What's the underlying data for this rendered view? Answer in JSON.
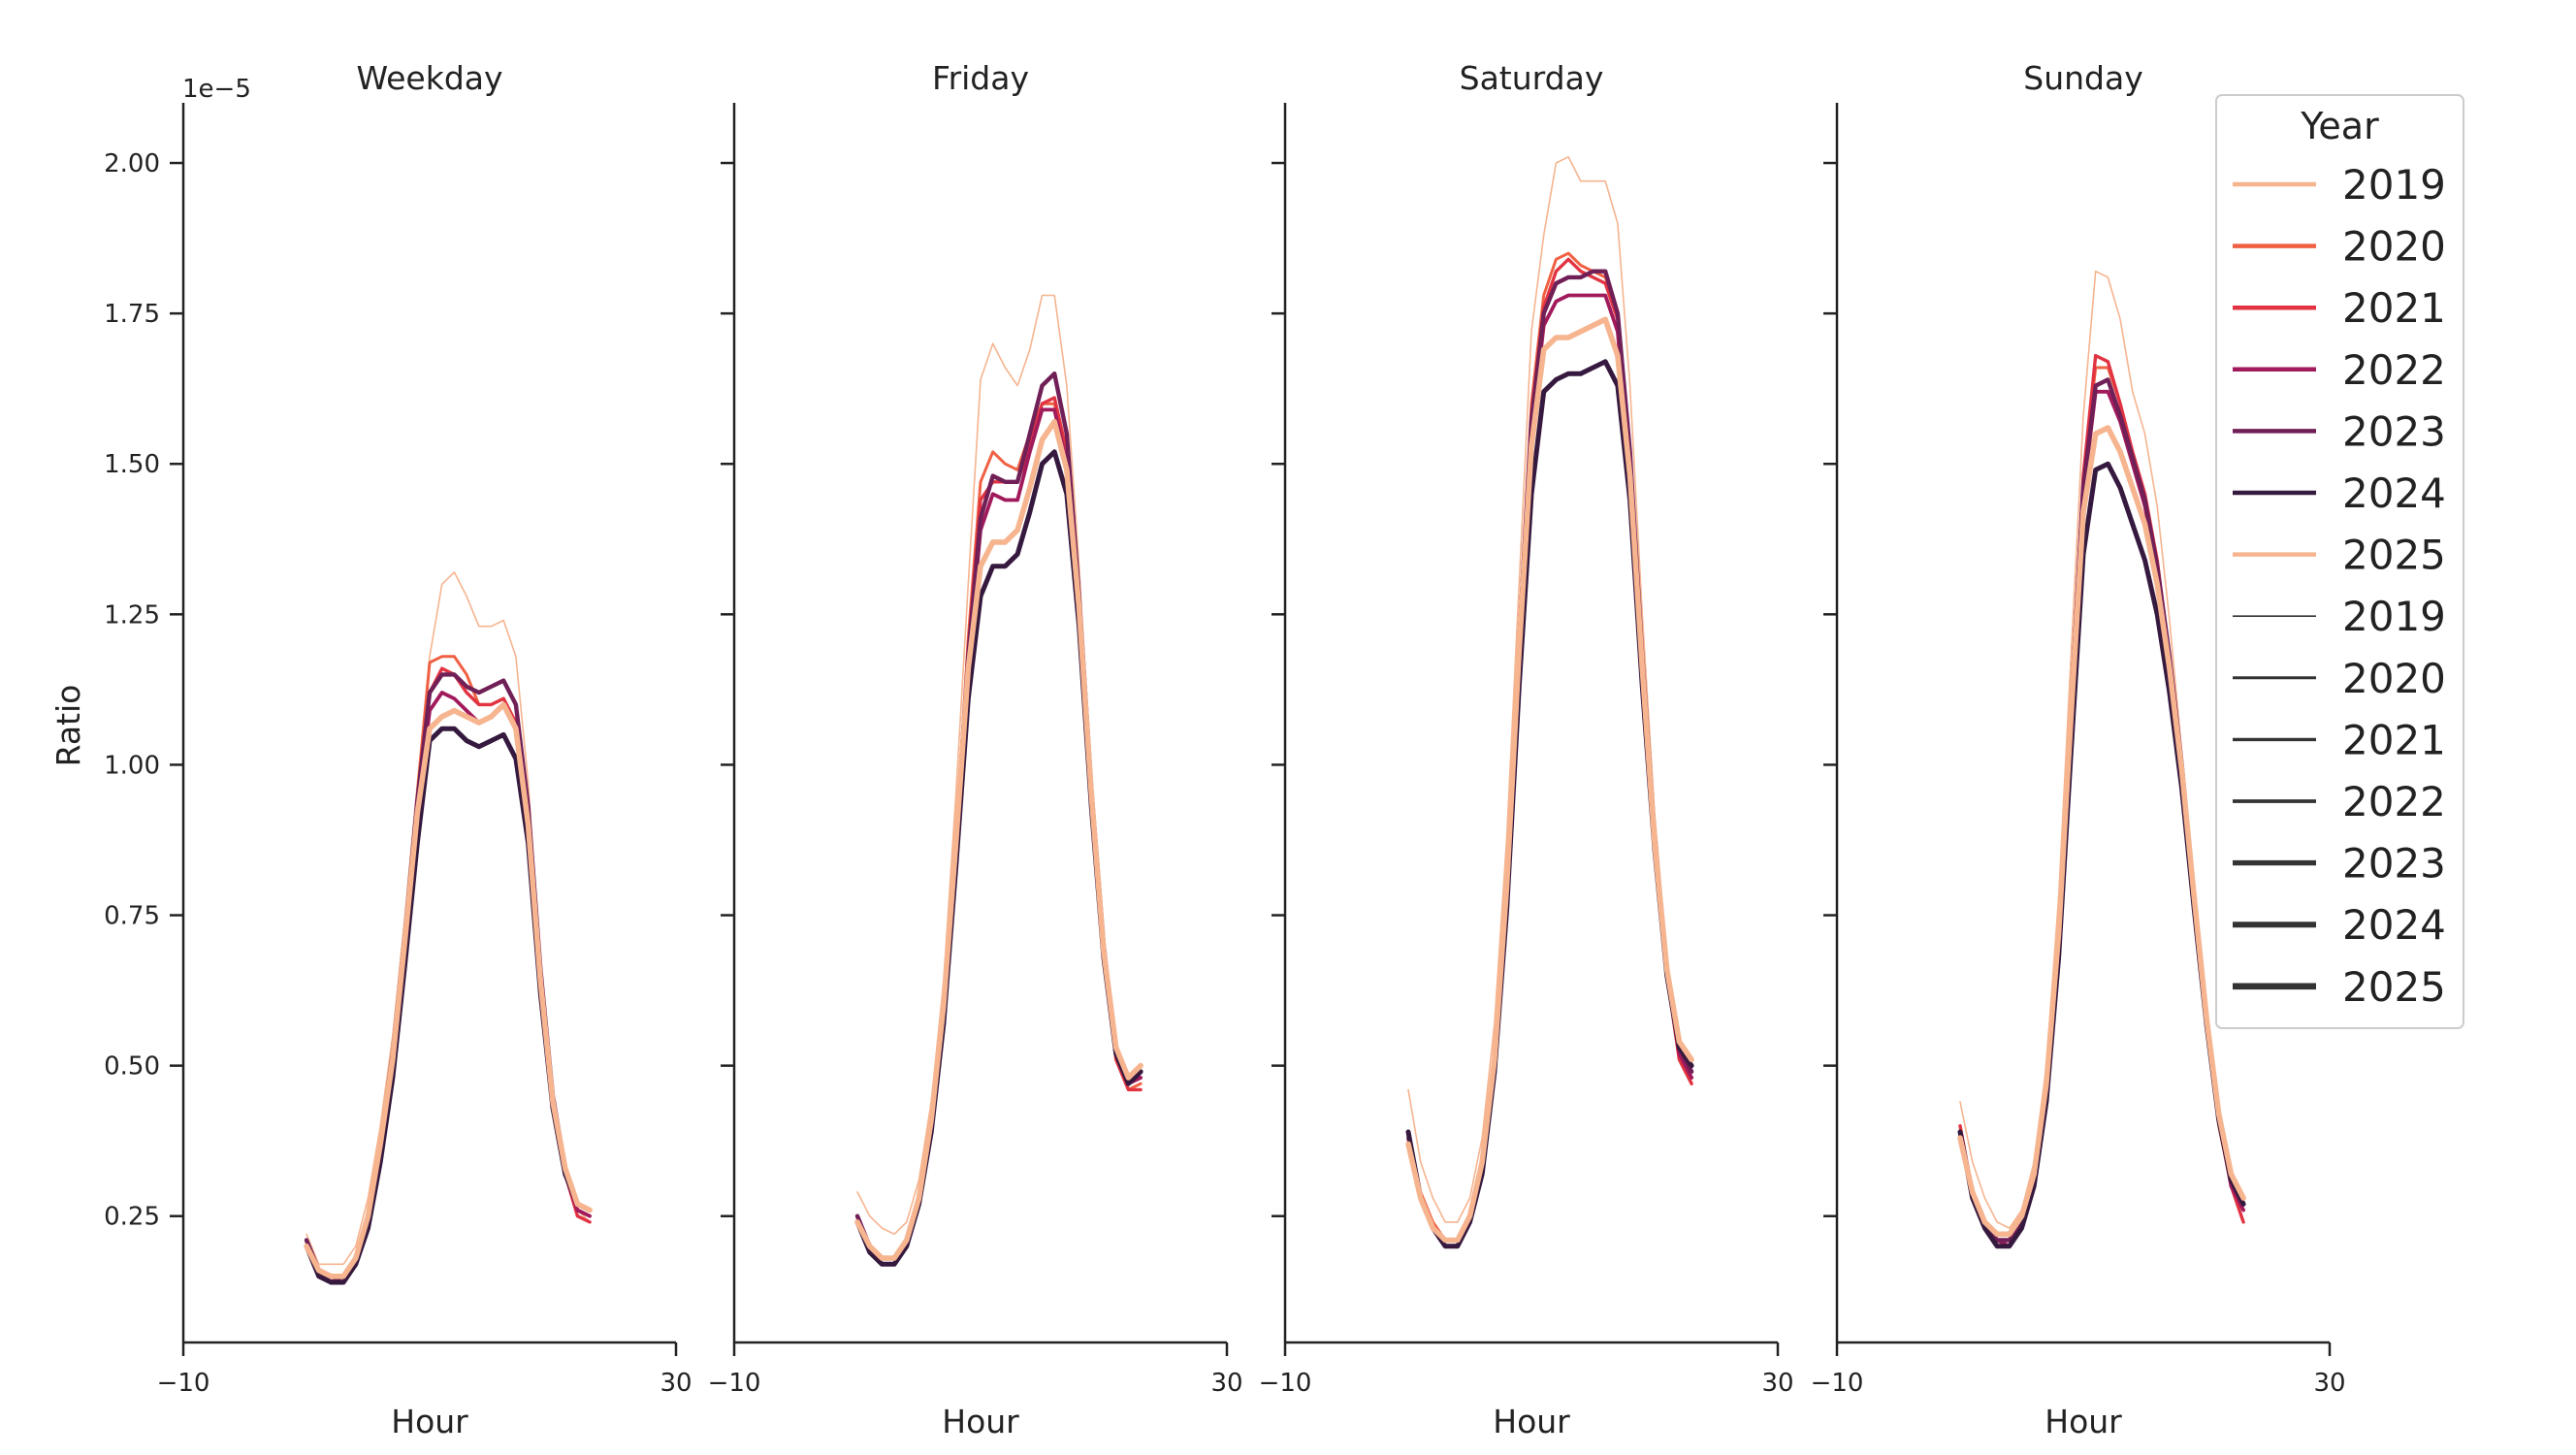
{
  "chart_data": {
    "type": "line",
    "shared_y": true,
    "ylabel": "Ratio",
    "y_offset_text": "1e−5",
    "ylim": [
      0.04,
      2.1
    ],
    "y_ticks": [
      0.25,
      0.5,
      0.75,
      1.0,
      1.25,
      1.5,
      1.75,
      2.0
    ],
    "y_tick_labels": [
      "0.25",
      "0.50",
      "0.75",
      "1.00",
      "1.25",
      "1.50",
      "1.75",
      "2.00"
    ],
    "x_ticks": [
      -10,
      30
    ],
    "x_tick_labels": [
      "−10",
      "30"
    ],
    "grid": false,
    "legend": {
      "title": "Year",
      "placement": "top-right",
      "hue_entries": [
        {
          "label": "2019",
          "color": "#f6b48f"
        },
        {
          "label": "2020",
          "color": "#f06043"
        },
        {
          "label": "2021",
          "color": "#e13342"
        },
        {
          "label": "2022",
          "color": "#a11a5b"
        },
        {
          "label": "2023",
          "color": "#701f57"
        },
        {
          "label": "2024",
          "color": "#35193e"
        },
        {
          "label": "2025",
          "color": "#f6b48f"
        }
      ],
      "width_entries": [
        {
          "label": "2019",
          "color": "#333333"
        },
        {
          "label": "2020",
          "color": "#333333"
        },
        {
          "label": "2021",
          "color": "#333333"
        },
        {
          "label": "2022",
          "color": "#333333"
        },
        {
          "label": "2023",
          "color": "#333333"
        },
        {
          "label": "2024",
          "color": "#333333"
        },
        {
          "label": "2025",
          "color": "#333333"
        }
      ]
    },
    "panels": [
      {
        "title": "Weekday",
        "xlabel": "Hour",
        "xlim": [
          -10,
          30
        ],
        "x": [
          0,
          1,
          2,
          3,
          4,
          5,
          6,
          7,
          8,
          9,
          10,
          11,
          12,
          13,
          14,
          15,
          16,
          17,
          18,
          19,
          20,
          21,
          22,
          23
        ],
        "series": [
          {
            "year": "2019",
            "values": [
              0.22,
              0.17,
              0.17,
              0.17,
              0.2,
              0.28,
              0.4,
              0.55,
              0.75,
              0.97,
              1.18,
              1.3,
              1.32,
              1.28,
              1.23,
              1.23,
              1.24,
              1.18,
              0.97,
              0.68,
              0.46,
              0.33,
              0.26,
              0.24
            ]
          },
          {
            "year": "2020",
            "values": [
              0.21,
              0.16,
              0.15,
              0.15,
              0.18,
              0.25,
              0.37,
              0.52,
              0.72,
              0.95,
              1.17,
              1.18,
              1.18,
              1.15,
              1.1,
              1.1,
              1.11,
              1.07,
              0.92,
              0.66,
              0.45,
              0.33,
              0.26,
              0.25
            ]
          },
          {
            "year": "2021",
            "values": [
              0.21,
              0.16,
              0.15,
              0.15,
              0.18,
              0.25,
              0.37,
              0.52,
              0.72,
              0.93,
              1.12,
              1.16,
              1.15,
              1.12,
              1.1,
              1.1,
              1.11,
              1.07,
              0.92,
              0.65,
              0.44,
              0.32,
              0.25,
              0.24
            ]
          },
          {
            "year": "2022",
            "values": [
              0.21,
              0.16,
              0.14,
              0.15,
              0.18,
              0.25,
              0.37,
              0.52,
              0.71,
              0.92,
              1.09,
              1.12,
              1.11,
              1.09,
              1.07,
              1.08,
              1.1,
              1.06,
              0.91,
              0.65,
              0.44,
              0.32,
              0.26,
              0.25
            ]
          },
          {
            "year": "2023",
            "values": [
              0.21,
              0.16,
              0.14,
              0.15,
              0.18,
              0.25,
              0.37,
              0.52,
              0.72,
              0.94,
              1.12,
              1.15,
              1.15,
              1.13,
              1.12,
              1.13,
              1.14,
              1.1,
              0.93,
              0.66,
              0.45,
              0.33,
              0.27,
              0.26
            ]
          },
          {
            "year": "2024",
            "values": [
              0.2,
              0.15,
              0.14,
              0.14,
              0.17,
              0.23,
              0.34,
              0.48,
              0.67,
              0.87,
              1.04,
              1.06,
              1.06,
              1.04,
              1.03,
              1.04,
              1.05,
              1.01,
              0.87,
              0.62,
              0.43,
              0.32,
              0.27,
              0.26
            ]
          },
          {
            "year": "2025",
            "values": [
              0.2,
              0.16,
              0.15,
              0.15,
              0.18,
              0.25,
              0.37,
              0.51,
              0.71,
              0.92,
              1.06,
              1.08,
              1.09,
              1.08,
              1.07,
              1.08,
              1.1,
              1.06,
              0.9,
              0.64,
              0.44,
              0.33,
              0.27,
              0.26
            ]
          }
        ]
      },
      {
        "title": "Friday",
        "xlabel": "Hour",
        "xlim": [
          -10,
          30
        ],
        "x": [
          0,
          1,
          2,
          3,
          4,
          5,
          6,
          7,
          8,
          9,
          10,
          11,
          12,
          13,
          14,
          15,
          16,
          17,
          18,
          19,
          20,
          21,
          22,
          23
        ],
        "series": [
          {
            "year": "2019",
            "values": [
              0.29,
              0.25,
              0.23,
              0.22,
              0.24,
              0.31,
              0.44,
              0.64,
              0.95,
              1.3,
              1.64,
              1.7,
              1.66,
              1.63,
              1.69,
              1.78,
              1.78,
              1.63,
              1.33,
              0.98,
              0.71,
              0.52,
              0.46,
              0.47
            ]
          },
          {
            "year": "2020",
            "values": [
              0.25,
              0.2,
              0.18,
              0.18,
              0.21,
              0.28,
              0.41,
              0.6,
              0.88,
              1.21,
              1.47,
              1.52,
              1.5,
              1.49,
              1.55,
              1.6,
              1.6,
              1.5,
              1.25,
              0.94,
              0.69,
              0.51,
              0.46,
              0.47
            ]
          },
          {
            "year": "2021",
            "values": [
              0.25,
              0.2,
              0.18,
              0.18,
              0.21,
              0.28,
              0.41,
              0.6,
              0.87,
              1.19,
              1.44,
              1.47,
              1.47,
              1.47,
              1.53,
              1.6,
              1.61,
              1.52,
              1.26,
              0.94,
              0.68,
              0.51,
              0.46,
              0.46
            ]
          },
          {
            "year": "2022",
            "values": [
              0.25,
              0.2,
              0.18,
              0.18,
              0.21,
              0.28,
              0.41,
              0.6,
              0.87,
              1.17,
              1.39,
              1.45,
              1.44,
              1.44,
              1.52,
              1.59,
              1.59,
              1.5,
              1.25,
              0.94,
              0.69,
              0.52,
              0.47,
              0.48
            ]
          },
          {
            "year": "2023",
            "values": [
              0.25,
              0.2,
              0.18,
              0.18,
              0.21,
              0.28,
              0.41,
              0.6,
              0.87,
              1.18,
              1.41,
              1.48,
              1.47,
              1.47,
              1.55,
              1.63,
              1.65,
              1.55,
              1.28,
              0.96,
              0.7,
              0.52,
              0.47,
              0.49
            ]
          },
          {
            "year": "2024",
            "values": [
              0.24,
              0.19,
              0.17,
              0.17,
              0.2,
              0.27,
              0.39,
              0.57,
              0.83,
              1.11,
              1.28,
              1.33,
              1.33,
              1.35,
              1.42,
              1.5,
              1.52,
              1.45,
              1.23,
              0.93,
              0.68,
              0.52,
              0.47,
              0.49
            ]
          },
          {
            "year": "2025",
            "values": [
              0.24,
              0.2,
              0.18,
              0.18,
              0.21,
              0.28,
              0.41,
              0.6,
              0.87,
              1.16,
              1.33,
              1.37,
              1.37,
              1.39,
              1.46,
              1.54,
              1.57,
              1.49,
              1.26,
              0.95,
              0.69,
              0.53,
              0.48,
              0.5
            ]
          }
        ]
      },
      {
        "title": "Saturday",
        "xlabel": "Hour",
        "xlim": [
          -10,
          30
        ],
        "x": [
          0,
          1,
          2,
          3,
          4,
          5,
          6,
          7,
          8,
          9,
          10,
          11,
          12,
          13,
          14,
          15,
          16,
          17,
          18,
          19,
          20,
          21,
          22,
          23
        ],
        "series": [
          {
            "year": "2019",
            "values": [
              0.46,
              0.34,
              0.28,
              0.24,
              0.24,
              0.28,
              0.38,
              0.57,
              0.88,
              1.3,
              1.72,
              1.88,
              2.0,
              2.01,
              1.97,
              1.97,
              1.97,
              1.9,
              1.63,
              1.25,
              0.92,
              0.68,
              0.53,
              0.48
            ]
          },
          {
            "year": "2020",
            "values": [
              0.39,
              0.29,
              0.24,
              0.21,
              0.21,
              0.25,
              0.34,
              0.52,
              0.82,
              1.22,
              1.6,
              1.78,
              1.84,
              1.85,
              1.83,
              1.82,
              1.81,
              1.75,
              1.52,
              1.18,
              0.88,
              0.66,
              0.52,
              0.47
            ]
          },
          {
            "year": "2021",
            "values": [
              0.39,
              0.28,
              0.23,
              0.2,
              0.2,
              0.24,
              0.33,
              0.51,
              0.81,
              1.21,
              1.58,
              1.76,
              1.82,
              1.84,
              1.82,
              1.81,
              1.8,
              1.74,
              1.51,
              1.17,
              0.87,
              0.65,
              0.51,
              0.47
            ]
          },
          {
            "year": "2022",
            "values": [
              0.38,
              0.28,
              0.23,
              0.2,
              0.2,
              0.24,
              0.33,
              0.5,
              0.79,
              1.18,
              1.55,
              1.73,
              1.77,
              1.78,
              1.78,
              1.78,
              1.78,
              1.72,
              1.49,
              1.16,
              0.87,
              0.65,
              0.52,
              0.48
            ]
          },
          {
            "year": "2023",
            "values": [
              0.39,
              0.28,
              0.23,
              0.2,
              0.2,
              0.24,
              0.33,
              0.51,
              0.8,
              1.2,
              1.57,
              1.75,
              1.8,
              1.81,
              1.81,
              1.82,
              1.82,
              1.75,
              1.52,
              1.18,
              0.88,
              0.66,
              0.53,
              0.49
            ]
          },
          {
            "year": "2024",
            "values": [
              0.39,
              0.28,
              0.23,
              0.2,
              0.2,
              0.24,
              0.32,
              0.49,
              0.76,
              1.13,
              1.45,
              1.62,
              1.64,
              1.65,
              1.65,
              1.66,
              1.67,
              1.63,
              1.44,
              1.13,
              0.86,
              0.65,
              0.53,
              0.5
            ]
          },
          {
            "year": "2025",
            "values": [
              0.37,
              0.28,
              0.23,
              0.21,
              0.21,
              0.25,
              0.34,
              0.51,
              0.8,
              1.19,
              1.53,
              1.69,
              1.71,
              1.71,
              1.72,
              1.73,
              1.74,
              1.68,
              1.48,
              1.16,
              0.87,
              0.66,
              0.54,
              0.51
            ]
          }
        ]
      },
      {
        "title": "Sunday",
        "xlabel": "Hour",
        "xlim": [
          -10,
          30
        ],
        "x": [
          0,
          1,
          2,
          3,
          4,
          5,
          6,
          7,
          8,
          9,
          10,
          11,
          12,
          13,
          14,
          15,
          16,
          17,
          18,
          19,
          20,
          21,
          22,
          23
        ],
        "series": [
          {
            "year": "2019",
            "values": [
              0.44,
              0.34,
              0.28,
              0.24,
              0.23,
              0.26,
              0.34,
              0.5,
              0.78,
              1.18,
              1.58,
              1.82,
              1.81,
              1.74,
              1.62,
              1.55,
              1.43,
              1.24,
              1.02,
              0.79,
              0.58,
              0.41,
              0.3,
              0.26
            ]
          },
          {
            "year": "2020",
            "values": [
              0.4,
              0.29,
              0.24,
              0.21,
              0.21,
              0.24,
              0.31,
              0.46,
              0.72,
              1.1,
              1.48,
              1.66,
              1.66,
              1.6,
              1.52,
              1.45,
              1.34,
              1.18,
              0.99,
              0.77,
              0.57,
              0.4,
              0.3,
              0.26
            ]
          },
          {
            "year": "2021",
            "values": [
              0.4,
              0.29,
              0.24,
              0.21,
              0.2,
              0.23,
              0.31,
              0.46,
              0.72,
              1.1,
              1.48,
              1.68,
              1.67,
              1.6,
              1.52,
              1.45,
              1.34,
              1.18,
              0.99,
              0.77,
              0.57,
              0.41,
              0.3,
              0.24
            ]
          },
          {
            "year": "2022",
            "values": [
              0.39,
              0.29,
              0.24,
              0.21,
              0.2,
              0.23,
              0.31,
              0.45,
              0.71,
              1.08,
              1.45,
              1.62,
              1.62,
              1.57,
              1.5,
              1.43,
              1.32,
              1.17,
              0.99,
              0.77,
              0.57,
              0.41,
              0.3,
              0.26
            ]
          },
          {
            "year": "2023",
            "values": [
              0.39,
              0.29,
              0.24,
              0.21,
              0.21,
              0.24,
              0.31,
              0.46,
              0.72,
              1.09,
              1.46,
              1.63,
              1.64,
              1.58,
              1.51,
              1.44,
              1.33,
              1.18,
              1.0,
              0.78,
              0.58,
              0.41,
              0.31,
              0.27
            ]
          },
          {
            "year": "2024",
            "values": [
              0.39,
              0.28,
              0.23,
              0.2,
              0.2,
              0.23,
              0.3,
              0.44,
              0.68,
              1.02,
              1.35,
              1.49,
              1.5,
              1.46,
              1.4,
              1.34,
              1.25,
              1.12,
              0.96,
              0.76,
              0.57,
              0.41,
              0.31,
              0.27
            ]
          },
          {
            "year": "2025",
            "values": [
              0.38,
              0.29,
              0.24,
              0.22,
              0.22,
              0.25,
              0.32,
              0.47,
              0.72,
              1.08,
              1.42,
              1.55,
              1.56,
              1.52,
              1.46,
              1.4,
              1.3,
              1.16,
              0.99,
              0.78,
              0.58,
              0.42,
              0.32,
              0.28
            ]
          }
        ]
      }
    ]
  }
}
